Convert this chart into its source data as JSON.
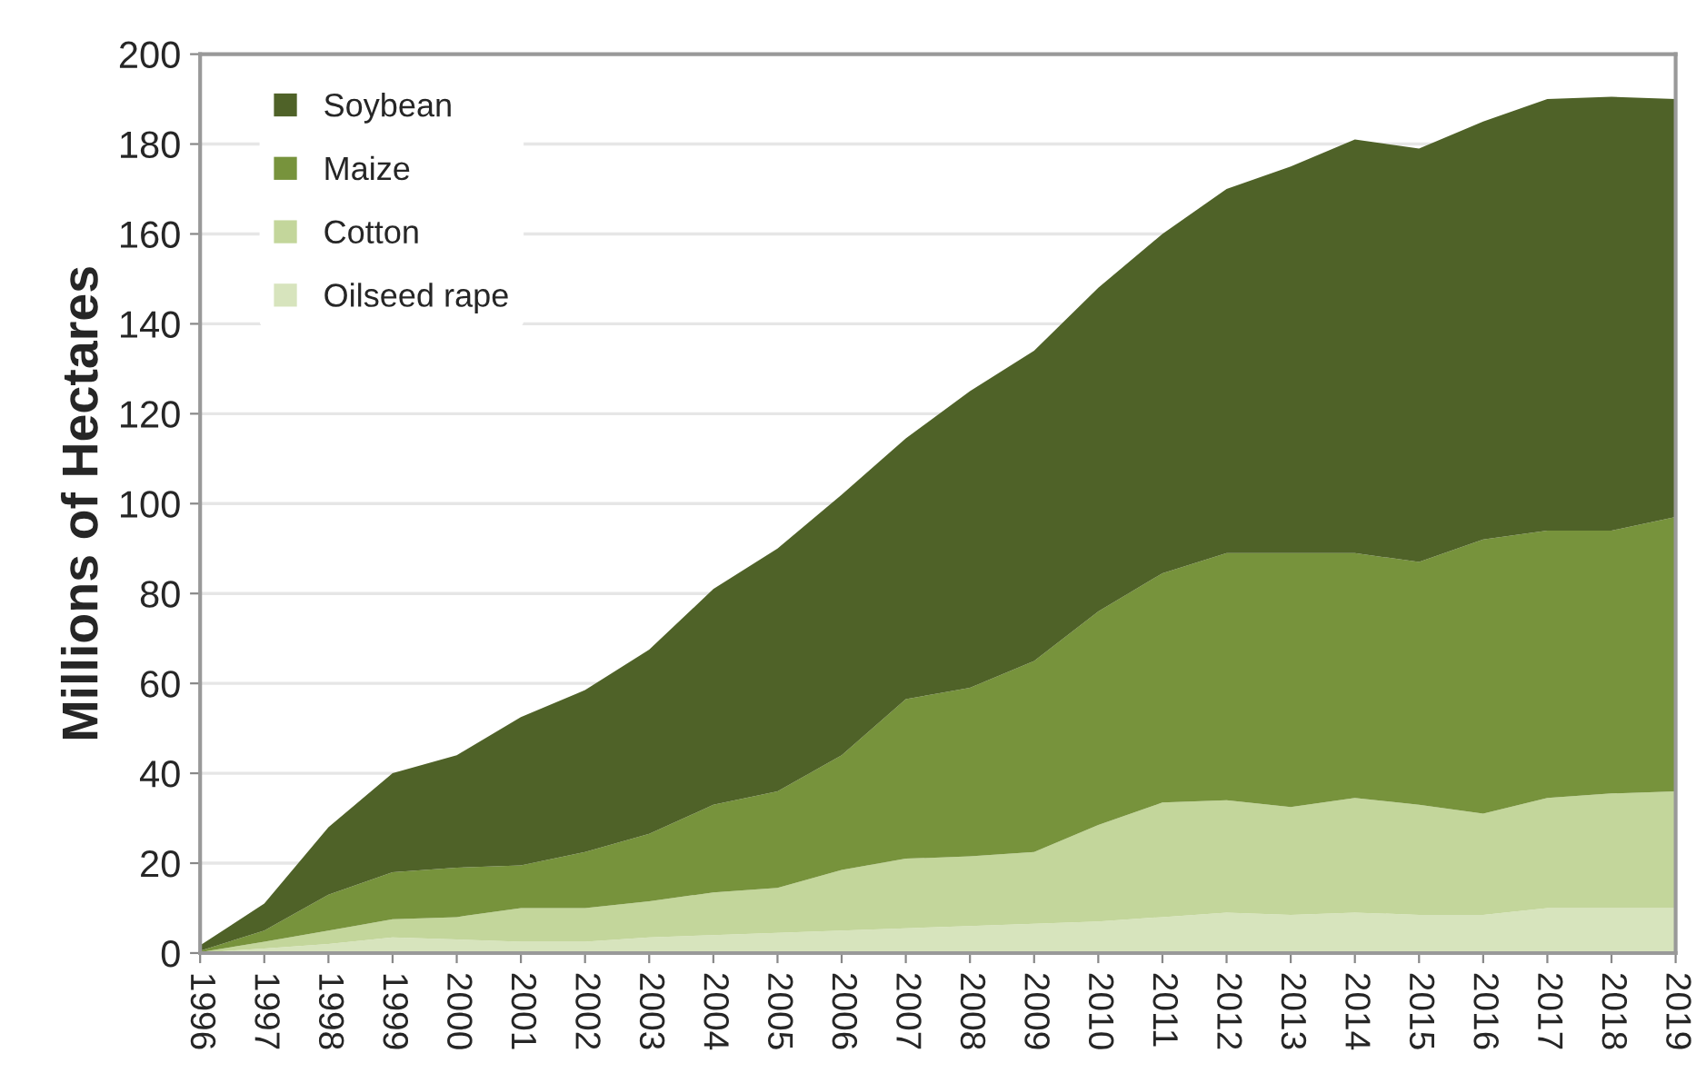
{
  "chart_data": {
    "type": "area",
    "stacked": true,
    "ylabel": "Millions of Hectares",
    "categories": [
      "1996",
      "1997",
      "1998",
      "1999",
      "2000",
      "2001",
      "2002",
      "2003",
      "2004",
      "2005",
      "2006",
      "2007",
      "2008",
      "2009",
      "2010",
      "2011",
      "2012",
      "2013",
      "2014",
      "2015",
      "2016",
      "2017",
      "2018",
      "2019"
    ],
    "series": [
      {
        "name": "Oilseed rape",
        "color": "#d7e4bd",
        "values": [
          0.1,
          1,
          2,
          3.5,
          3,
          2.5,
          2.5,
          3.5,
          4,
          4.5,
          5,
          5.5,
          6,
          6.5,
          7,
          8,
          9,
          8.5,
          9,
          8.5,
          8.5,
          10,
          10,
          10
        ]
      },
      {
        "name": "Cotton",
        "color": "#c3d69b",
        "values": [
          0.1,
          1.5,
          3,
          4,
          5,
          7.5,
          7.5,
          8,
          9.5,
          10,
          13.5,
          15.5,
          15.5,
          16,
          21.5,
          25.5,
          25,
          24,
          25.5,
          24.5,
          22.5,
          24.5,
          25.5,
          26
        ]
      },
      {
        "name": "Maize",
        "color": "#77933c",
        "values": [
          0.3,
          2.5,
          8,
          10.5,
          11,
          9.5,
          12.5,
          15,
          19.5,
          21.5,
          25.5,
          35.5,
          37.5,
          42.5,
          47.5,
          51,
          55,
          56.5,
          54.5,
          54,
          61,
          59.5,
          58.5,
          61
        ]
      },
      {
        "name": "Soybean",
        "color": "#4f6228",
        "values": [
          1.2,
          6,
          15,
          22,
          25,
          33,
          36,
          41,
          48,
          54,
          58,
          58,
          66,
          69,
          72,
          75.5,
          81,
          86,
          92,
          92,
          93,
          96,
          96.5,
          93
        ]
      }
    ],
    "ylim": [
      0,
      200
    ],
    "yticks": [
      0,
      20,
      40,
      60,
      80,
      100,
      120,
      140,
      160,
      180,
      200
    ],
    "grid": "y",
    "legend": "top left"
  }
}
